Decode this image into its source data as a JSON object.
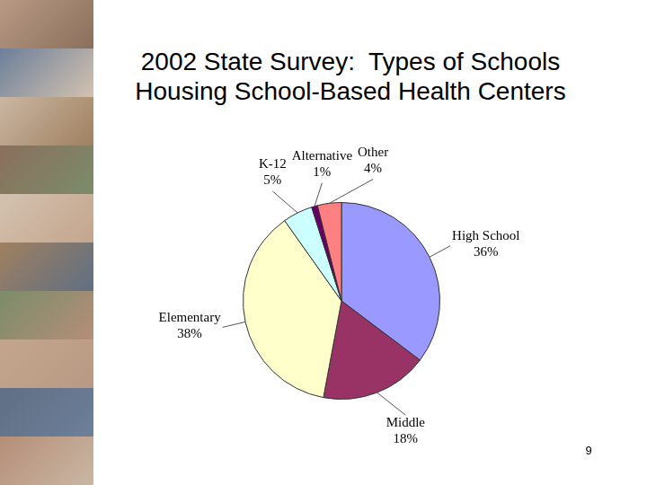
{
  "chart_data": {
    "type": "pie",
    "title": "2002 State Survey:  Types of Schools Housing School-Based Health Centers",
    "categories": [
      "High School",
      "Middle",
      "Elementary",
      "K-12",
      "Alternative",
      "Other"
    ],
    "values": [
      36,
      18,
      38,
      5,
      1,
      4
    ],
    "value_labels": [
      "36%",
      "18%",
      "38%",
      "5%",
      "1%",
      "4%"
    ],
    "colors": [
      "#9999ff",
      "#993366",
      "#ffffcc",
      "#ccffff",
      "#660066",
      "#ff8080"
    ],
    "data_labels": true
  },
  "page": 9
}
